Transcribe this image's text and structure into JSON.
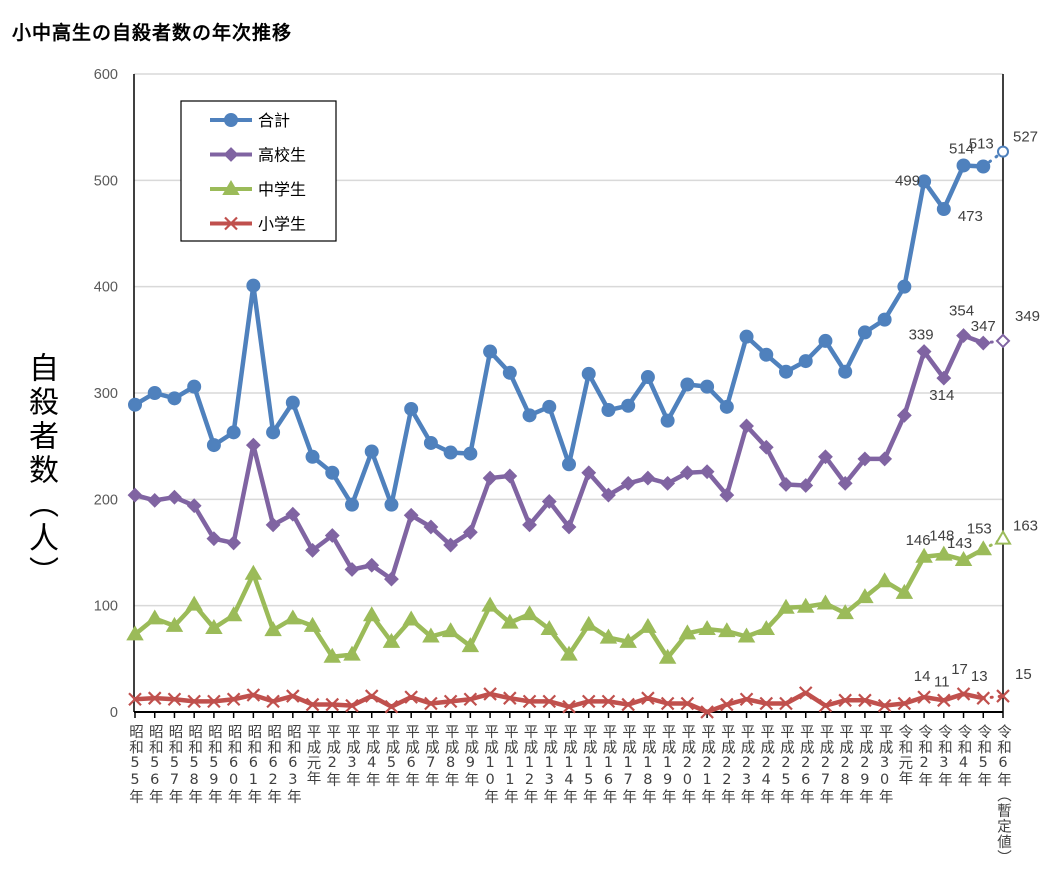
{
  "chart_data": {
    "type": "line",
    "title": "小中高生の自殺者数の年次推移",
    "ylabel": "自殺者数（人）",
    "xlabel": "",
    "ylim": [
      0,
      600
    ],
    "yticks": [
      0,
      100,
      200,
      300,
      400,
      500,
      600
    ],
    "grid": true,
    "legend_position": "top-left",
    "provisional_note": "令和6年は暫定値（白抜きマーカー・点線）",
    "categories": [
      "昭和55年",
      "昭和56年",
      "昭和57年",
      "昭和58年",
      "昭和59年",
      "昭和60年",
      "昭和61年",
      "昭和62年",
      "昭和63年",
      "平成元年",
      "平成2年",
      "平成3年",
      "平成4年",
      "平成5年",
      "平成6年",
      "平成7年",
      "平成8年",
      "平成9年",
      "平成10年",
      "平成11年",
      "平成12年",
      "平成13年",
      "平成14年",
      "平成15年",
      "平成16年",
      "平成17年",
      "平成18年",
      "平成19年",
      "平成20年",
      "平成21年",
      "平成22年",
      "平成23年",
      "平成24年",
      "平成25年",
      "平成26年",
      "平成27年",
      "平成28年",
      "平成29年",
      "平成30年",
      "令和元年",
      "令和2年",
      "令和3年",
      "令和4年",
      "令和5年",
      "令和6年（暫定値）"
    ],
    "series": [
      {
        "name": "合計",
        "color": "#4F81BD",
        "marker": "circle",
        "values": [
          289,
          300,
          295,
          306,
          251,
          263,
          401,
          263,
          291,
          240,
          225,
          195,
          245,
          195,
          285,
          253,
          244,
          243,
          339,
          319,
          279,
          287,
          233,
          318,
          284,
          288,
          315,
          274,
          308,
          306,
          287,
          353,
          336,
          320,
          330,
          349,
          320,
          357,
          369,
          400,
          499,
          473,
          514,
          513,
          527
        ],
        "labels": [
          "499",
          "473",
          "514",
          "513",
          "527"
        ]
      },
      {
        "name": "高校生",
        "color": "#8064A2",
        "marker": "diamond",
        "values": [
          204,
          199,
          202,
          194,
          163,
          159,
          251,
          176,
          186,
          152,
          166,
          134,
          138,
          125,
          185,
          174,
          157,
          169,
          220,
          222,
          176,
          198,
          174,
          225,
          204,
          215,
          220,
          215,
          225,
          226,
          204,
          269,
          249,
          214,
          213,
          240,
          215,
          238,
          238,
          279,
          339,
          314,
          354,
          347,
          349
        ],
        "labels": [
          "339",
          "314",
          "354",
          "347",
          "349"
        ]
      },
      {
        "name": "中学生",
        "color": "#9BBB59",
        "marker": "triangle",
        "values": [
          73,
          88,
          81,
          101,
          79,
          91,
          130,
          77,
          88,
          81,
          52,
          54,
          91,
          66,
          87,
          71,
          76,
          62,
          100,
          84,
          92,
          78,
          54,
          82,
          70,
          66,
          80,
          51,
          74,
          78,
          76,
          71,
          78,
          98,
          99,
          102,
          93,
          108,
          123,
          112,
          146,
          148,
          143,
          153,
          163
        ],
        "labels": [
          "146",
          "148",
          "143",
          "153",
          "163"
        ]
      },
      {
        "name": "小学生",
        "color": "#C0504D",
        "marker": "x",
        "values": [
          12,
          13,
          12,
          10,
          10,
          12,
          16,
          10,
          15,
          7,
          7,
          6,
          15,
          5,
          14,
          8,
          10,
          12,
          17,
          13,
          10,
          10,
          5,
          10,
          10,
          7,
          13,
          8,
          8,
          0,
          7,
          12,
          8,
          8,
          18,
          6,
          11,
          11,
          6,
          8,
          14,
          11,
          17,
          13,
          15
        ],
        "labels": [
          "14",
          "11",
          "17",
          "13",
          "15"
        ]
      }
    ]
  }
}
